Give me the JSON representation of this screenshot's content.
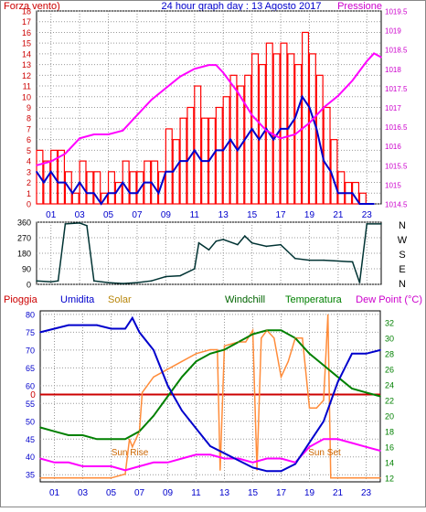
{
  "colors": {
    "wind": "#ff0000",
    "gust_bars": "#ff0000",
    "wind_avg": "#0000cc",
    "pressure": "#ff00ff",
    "direction": "#003333",
    "humidity": "#0000cc",
    "solar": "#ff8c3a",
    "temperature": "#008000",
    "windchill": "#008000",
    "dewpoint": "#ff00ff",
    "rain": "#cc0000",
    "grid": "#999999",
    "frame": "#000000",
    "left_axis_top": "#cc0000",
    "left_axis_bottom": "#0000cc",
    "right_axis_top": "#cc00cc",
    "right_axis_bottom": "#008000",
    "time_axis": "#0000cc"
  },
  "header": {
    "wind_label": "Forza vento)",
    "title": "24 hour graph day : 13 Agosto 2017",
    "pressure_label": "Pressione"
  },
  "legend_bottom": {
    "rain": "Pioggia",
    "humidity": "Umidita",
    "solar": "Solar",
    "windchill": "Windchill",
    "temperature": "Temperatura",
    "dewpoint": "Dew Point (°C)"
  },
  "annotations": {
    "sunrise": "Sun Rise",
    "sunset": "Sun Set"
  },
  "chart_data": [
    {
      "type": "line",
      "name": "wind-pressure",
      "x_ticks": [
        "01",
        "03",
        "05",
        "07",
        "09",
        "11",
        "13",
        "15",
        "17",
        "19",
        "21",
        "23"
      ],
      "xlim": [
        0,
        24
      ],
      "y_left": {
        "ylim": [
          0,
          18
        ],
        "ticks": [
          "0",
          "1",
          "2",
          "3",
          "4",
          "5",
          "6",
          "7",
          "8",
          "9",
          "10",
          "11",
          "12",
          "13",
          "14",
          "15",
          "16",
          "17",
          "18"
        ]
      },
      "y_right": {
        "ylim": [
          1014.5,
          1019.5
        ],
        "ticks": [
          "1014.5",
          "1015",
          "1015.5",
          "1016",
          "1016.5",
          "1017",
          "1017.5",
          "1018",
          "1018.5",
          "1019",
          "1019.5"
        ]
      },
      "wind_gust": [
        [
          0,
          5
        ],
        [
          0.5,
          4
        ],
        [
          1,
          5
        ],
        [
          1.5,
          5
        ],
        [
          2,
          3
        ],
        [
          2.5,
          1
        ],
        [
          3,
          4
        ],
        [
          3.5,
          3
        ],
        [
          4,
          3
        ],
        [
          4.5,
          1
        ],
        [
          5,
          3
        ],
        [
          5.5,
          2
        ],
        [
          6,
          4
        ],
        [
          6.5,
          3
        ],
        [
          7,
          3
        ],
        [
          7.5,
          4
        ],
        [
          8,
          4
        ],
        [
          8.5,
          3
        ],
        [
          9,
          7
        ],
        [
          9.5,
          6
        ],
        [
          10,
          8
        ],
        [
          10.5,
          9
        ],
        [
          11,
          11
        ],
        [
          11.5,
          8
        ],
        [
          12,
          8
        ],
        [
          12.5,
          9
        ],
        [
          13,
          10
        ],
        [
          13.5,
          12
        ],
        [
          14,
          11
        ],
        [
          14.5,
          12
        ],
        [
          15,
          14
        ],
        [
          15.5,
          13
        ],
        [
          16,
          15
        ],
        [
          16.5,
          14
        ],
        [
          17,
          15
        ],
        [
          17.5,
          14
        ],
        [
          18,
          13
        ],
        [
          18.5,
          16
        ],
        [
          19,
          14
        ],
        [
          19.5,
          12
        ],
        [
          20,
          9
        ],
        [
          20.5,
          6
        ],
        [
          21,
          3
        ],
        [
          21.5,
          2
        ],
        [
          22,
          2
        ],
        [
          22.5,
          1
        ],
        [
          23,
          0
        ],
        [
          23.5,
          0
        ]
      ],
      "wind_avg": [
        [
          0,
          3
        ],
        [
          0.5,
          2
        ],
        [
          1,
          3
        ],
        [
          1.5,
          2
        ],
        [
          2,
          2
        ],
        [
          2.5,
          1
        ],
        [
          3,
          2
        ],
        [
          3.5,
          1
        ],
        [
          4,
          1
        ],
        [
          4.5,
          0
        ],
        [
          5,
          1
        ],
        [
          5.5,
          1
        ],
        [
          6,
          2
        ],
        [
          6.5,
          1
        ],
        [
          7,
          1
        ],
        [
          7.5,
          2
        ],
        [
          8,
          2
        ],
        [
          8.5,
          1
        ],
        [
          9,
          3
        ],
        [
          9.5,
          3
        ],
        [
          10,
          4
        ],
        [
          10.5,
          4
        ],
        [
          11,
          5
        ],
        [
          11.5,
          4
        ],
        [
          12,
          4
        ],
        [
          12.5,
          5
        ],
        [
          13,
          5
        ],
        [
          13.5,
          6
        ],
        [
          14,
          5
        ],
        [
          14.5,
          6
        ],
        [
          15,
          7
        ],
        [
          15.5,
          6
        ],
        [
          16,
          7
        ],
        [
          16.5,
          6
        ],
        [
          17,
          7
        ],
        [
          17.5,
          7
        ],
        [
          18,
          8
        ],
        [
          18.5,
          10
        ],
        [
          19,
          9
        ],
        [
          19.5,
          7
        ],
        [
          20,
          4
        ],
        [
          20.5,
          3
        ],
        [
          21,
          1
        ],
        [
          21.5,
          1
        ],
        [
          22,
          1
        ],
        [
          22.5,
          0
        ],
        [
          23,
          0
        ],
        [
          23.5,
          0
        ]
      ],
      "pressure": [
        [
          0,
          1015.5
        ],
        [
          1,
          1015.6
        ],
        [
          2,
          1015.8
        ],
        [
          3,
          1016.2
        ],
        [
          4,
          1016.3
        ],
        [
          5,
          1016.3
        ],
        [
          6,
          1016.4
        ],
        [
          7,
          1016.8
        ],
        [
          8,
          1017.2
        ],
        [
          9,
          1017.5
        ],
        [
          10,
          1017.8
        ],
        [
          11,
          1018.0
        ],
        [
          12,
          1018.1
        ],
        [
          12.5,
          1018.1
        ],
        [
          13,
          1017.9
        ],
        [
          14,
          1017.4
        ],
        [
          15,
          1016.8
        ],
        [
          16,
          1016.4
        ],
        [
          17,
          1016.2
        ],
        [
          18,
          1016.3
        ],
        [
          19,
          1016.6
        ],
        [
          20,
          1017.0
        ],
        [
          21,
          1017.3
        ],
        [
          22,
          1017.7
        ],
        [
          23,
          1018.2
        ],
        [
          23.5,
          1018.4
        ],
        [
          24,
          1018.3
        ]
      ]
    },
    {
      "type": "line",
      "name": "wind-direction",
      "x_ticks": [
        "01",
        "03",
        "05",
        "07",
        "09",
        "11",
        "13",
        "15",
        "17",
        "19",
        "21",
        "23"
      ],
      "xlim": [
        0,
        24
      ],
      "y_left": {
        "ylim": [
          0,
          360
        ],
        "ticks": [
          "0",
          "90",
          "180",
          "270",
          "360"
        ]
      },
      "y_right_labels": [
        "N",
        "W",
        "S",
        "E",
        "N"
      ],
      "direction": [
        [
          0,
          20
        ],
        [
          1,
          15
        ],
        [
          1.5,
          20
        ],
        [
          2,
          350
        ],
        [
          3,
          355
        ],
        [
          3.5,
          340
        ],
        [
          4,
          20
        ],
        [
          5,
          10
        ],
        [
          6,
          5
        ],
        [
          7,
          10
        ],
        [
          8,
          20
        ],
        [
          9,
          45
        ],
        [
          10,
          50
        ],
        [
          11,
          90
        ],
        [
          11.3,
          240
        ],
        [
          12,
          200
        ],
        [
          12.5,
          250
        ],
        [
          13,
          260
        ],
        [
          14,
          230
        ],
        [
          14.5,
          280
        ],
        [
          15,
          240
        ],
        [
          16,
          220
        ],
        [
          17,
          230
        ],
        [
          18,
          150
        ],
        [
          19,
          140
        ],
        [
          20,
          140
        ],
        [
          21,
          135
        ],
        [
          22,
          130
        ],
        [
          22.5,
          10
        ],
        [
          23,
          350
        ],
        [
          24,
          350
        ]
      ]
    },
    {
      "type": "line",
      "name": "humidity-temperature",
      "x_ticks": [
        "01",
        "03",
        "05",
        "07",
        "09",
        "11",
        "13",
        "15",
        "17",
        "19",
        "21",
        "23"
      ],
      "xlim": [
        0,
        24
      ],
      "y_left": {
        "ylim": [
          33,
          81
        ],
        "ticks": [
          "35",
          "40",
          "45",
          "50",
          "55",
          "60",
          "65",
          "70",
          "75",
          "80"
        ],
        "label": "Umidita"
      },
      "y_right": {
        "ylim": [
          11.5,
          33.5
        ],
        "ticks": [
          "12",
          "14",
          "16",
          "18",
          "20",
          "22",
          "24",
          "26",
          "28",
          "30",
          "32"
        ]
      },
      "rain_level": 0,
      "humidity": [
        [
          0,
          75
        ],
        [
          1,
          76
        ],
        [
          2,
          77
        ],
        [
          3,
          77
        ],
        [
          4,
          77
        ],
        [
          5,
          76
        ],
        [
          6,
          76
        ],
        [
          6.5,
          79
        ],
        [
          7,
          75
        ],
        [
          8,
          70
        ],
        [
          9,
          60
        ],
        [
          10,
          53
        ],
        [
          11,
          48
        ],
        [
          12,
          43
        ],
        [
          13,
          41
        ],
        [
          14,
          39
        ],
        [
          15,
          37
        ],
        [
          16,
          36
        ],
        [
          17,
          36
        ],
        [
          18,
          38
        ],
        [
          19,
          44
        ],
        [
          20,
          50
        ],
        [
          21,
          61
        ],
        [
          22,
          69
        ],
        [
          23,
          69
        ],
        [
          24,
          70
        ]
      ],
      "temperature": [
        [
          0,
          18.5
        ],
        [
          1,
          18
        ],
        [
          2,
          17.5
        ],
        [
          3,
          17.5
        ],
        [
          4,
          17
        ],
        [
          5,
          17
        ],
        [
          6,
          17
        ],
        [
          7,
          18
        ],
        [
          8,
          20
        ],
        [
          9,
          22.5
        ],
        [
          10,
          25
        ],
        [
          11,
          27
        ],
        [
          12,
          28
        ],
        [
          13,
          28.5
        ],
        [
          14,
          29.5
        ],
        [
          15,
          30.5
        ],
        [
          16,
          31
        ],
        [
          17,
          31
        ],
        [
          18,
          30
        ],
        [
          19,
          28
        ],
        [
          20,
          26.5
        ],
        [
          21,
          25
        ],
        [
          22,
          23.5
        ],
        [
          23,
          23
        ],
        [
          24,
          22.5
        ]
      ],
      "dewpoint": [
        [
          0,
          14.5
        ],
        [
          1,
          14
        ],
        [
          2,
          14
        ],
        [
          3,
          13.5
        ],
        [
          4,
          13.5
        ],
        [
          5,
          13.5
        ],
        [
          6,
          13
        ],
        [
          7,
          13.5
        ],
        [
          8,
          14
        ],
        [
          9,
          14
        ],
        [
          10,
          14.5
        ],
        [
          11,
          15
        ],
        [
          12,
          15
        ],
        [
          13,
          14.5
        ],
        [
          14,
          14.5
        ],
        [
          15,
          14
        ],
        [
          16,
          14.5
        ],
        [
          17,
          14.5
        ],
        [
          18,
          14
        ],
        [
          19,
          16
        ],
        [
          20,
          17
        ],
        [
          21,
          17
        ],
        [
          22,
          16.5
        ],
        [
          23,
          16
        ],
        [
          24,
          15.5
        ]
      ],
      "solar": [
        [
          0,
          12
        ],
        [
          5,
          12
        ],
        [
          6,
          12.5
        ],
        [
          6.3,
          17
        ],
        [
          6.5,
          16
        ],
        [
          7,
          18
        ],
        [
          7.2,
          23
        ],
        [
          8,
          25
        ],
        [
          9,
          26
        ],
        [
          10,
          27
        ],
        [
          11,
          28
        ],
        [
          12,
          28.5
        ],
        [
          12.5,
          28.5
        ],
        [
          12.7,
          13
        ],
        [
          13,
          29
        ],
        [
          14,
          29.5
        ],
        [
          14.5,
          29.5
        ],
        [
          15,
          31
        ],
        [
          15.3,
          13
        ],
        [
          15.6,
          30
        ],
        [
          16,
          31
        ],
        [
          16.5,
          30
        ],
        [
          17,
          25
        ],
        [
          17.5,
          27
        ],
        [
          18,
          30
        ],
        [
          18.5,
          30
        ],
        [
          19,
          21
        ],
        [
          19.5,
          21
        ],
        [
          20,
          22
        ],
        [
          20.3,
          33
        ],
        [
          20.5,
          12
        ],
        [
          21,
          12
        ],
        [
          24,
          12
        ]
      ]
    }
  ]
}
